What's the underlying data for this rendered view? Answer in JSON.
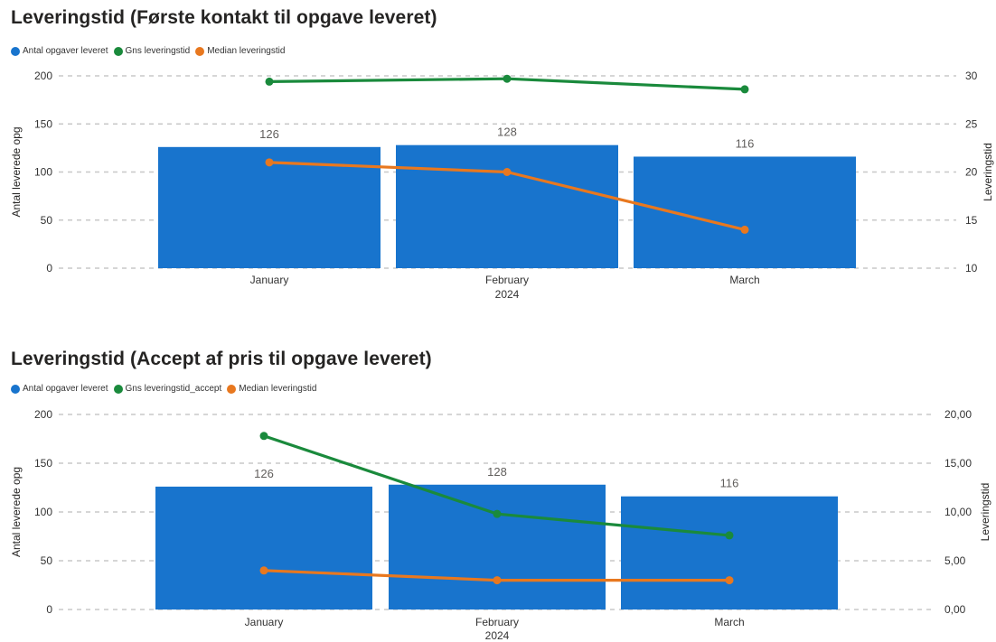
{
  "colors": {
    "bar": "#1874CD",
    "avg": "#1A8A3C",
    "median": "#E8781F",
    "grid": "#C8C8C8",
    "text": "#252423",
    "axis_text": "#333333",
    "label_text": "#605E5C"
  },
  "chart_data": [
    {
      "type": "bar",
      "title": "Leveringstid (Første kontakt til opgave leveret)",
      "categories": [
        "January",
        "February",
        "March"
      ],
      "x_group_label": "2024",
      "ylabel": "Antal leverede opg",
      "y2label": "Leveringstid",
      "ylim": [
        0,
        200
      ],
      "y_ticks": [
        "0",
        "50",
        "100",
        "150",
        "200"
      ],
      "y2lim": [
        10,
        30
      ],
      "y2_ticks": [
        "10",
        "15",
        "20",
        "25",
        "30"
      ],
      "grid": true,
      "legend_position": "top-left",
      "legend": [
        "Antal opgaver leveret",
        "Gns leveringstid",
        "Median leveringstid"
      ],
      "series": [
        {
          "name": "Antal opgaver leveret",
          "type": "bar",
          "axis": "left",
          "values": [
            126,
            128,
            116
          ],
          "data_labels": [
            "126",
            "128",
            "116"
          ]
        },
        {
          "name": "Gns leveringstid",
          "type": "line",
          "axis": "right",
          "values": [
            29.4,
            29.7,
            28.6
          ]
        },
        {
          "name": "Median leveringstid",
          "type": "line",
          "axis": "right",
          "values": [
            21,
            20,
            14
          ]
        }
      ]
    },
    {
      "type": "bar",
      "title": "Leveringstid (Accept af pris til opgave leveret)",
      "categories": [
        "January",
        "February",
        "March"
      ],
      "x_group_label": "2024",
      "ylabel": "Antal leverede opg",
      "y2label": "Leveringstid",
      "ylim": [
        0,
        200
      ],
      "y_ticks": [
        "0",
        "50",
        "100",
        "150",
        "200"
      ],
      "y2lim": [
        0,
        20
      ],
      "y2_ticks": [
        "0,00",
        "5,00",
        "10,00",
        "15,00",
        "20,00"
      ],
      "grid": true,
      "legend_position": "top-left",
      "legend": [
        "Antal opgaver leveret",
        "Gns leveringstid_accept",
        "Median leveringstid"
      ],
      "series": [
        {
          "name": "Antal opgaver leveret",
          "type": "bar",
          "axis": "left",
          "values": [
            126,
            128,
            116
          ],
          "data_labels": [
            "126",
            "128",
            "116"
          ]
        },
        {
          "name": "Gns leveringstid_accept",
          "type": "line",
          "axis": "right",
          "values": [
            17.8,
            9.8,
            7.6
          ]
        },
        {
          "name": "Median leveringstid",
          "type": "line",
          "axis": "right",
          "values": [
            4.0,
            3.0,
            3.0
          ]
        }
      ]
    }
  ]
}
